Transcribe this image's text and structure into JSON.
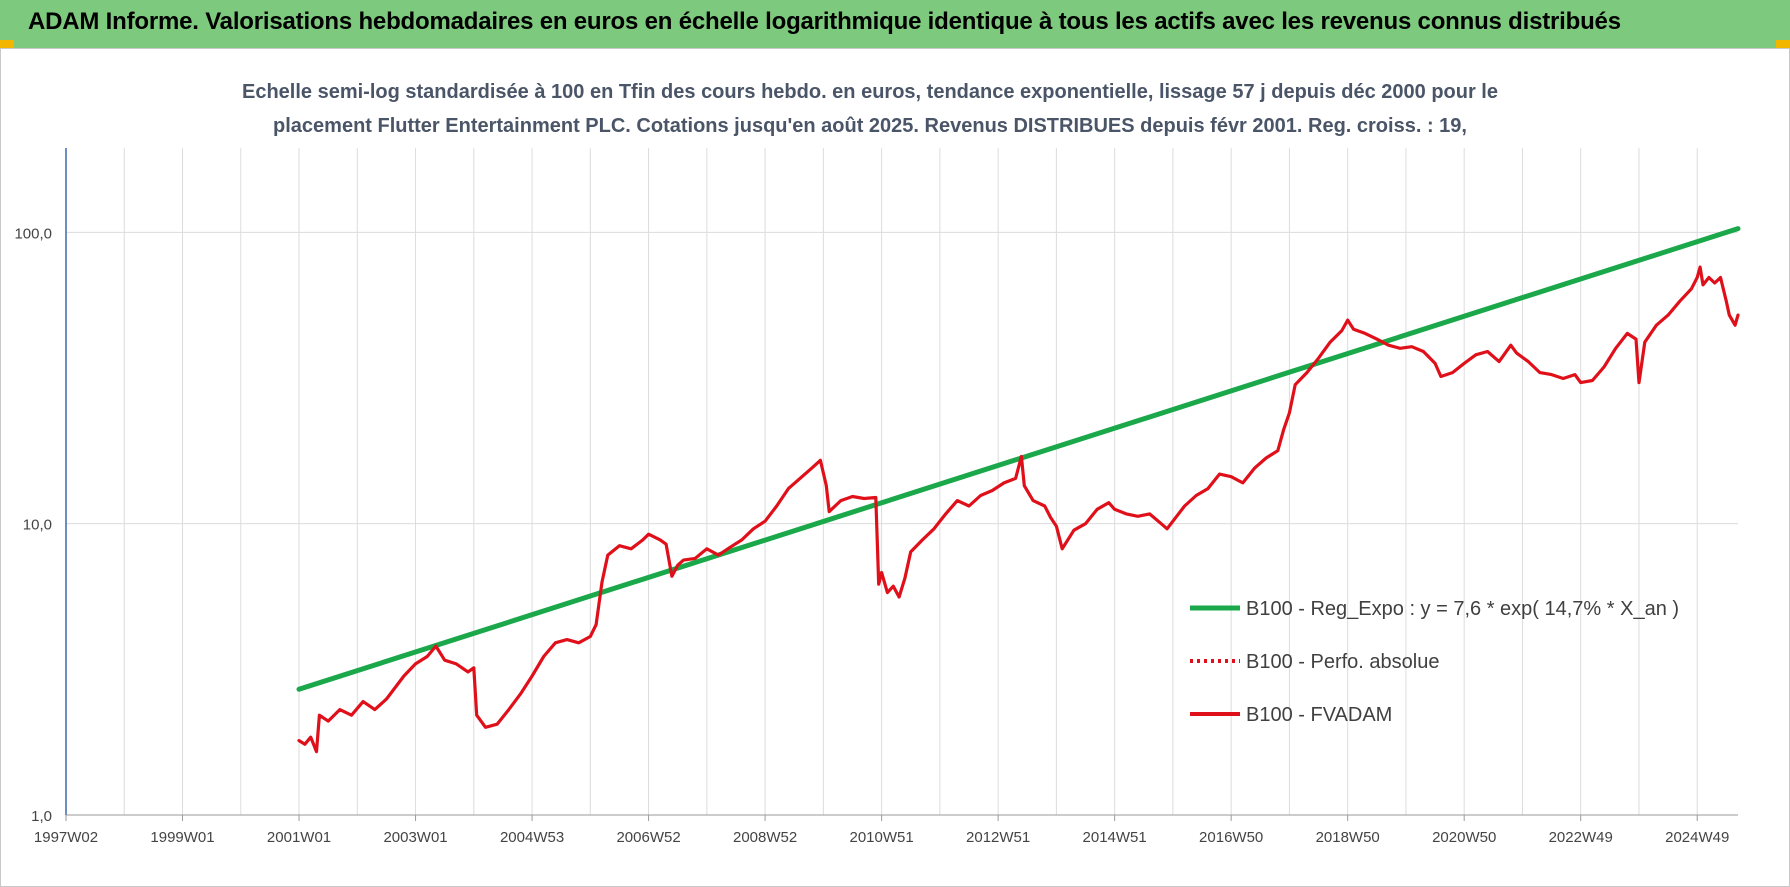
{
  "header": {
    "title": "ADAM Informe. Valorisations hebdomadaires en euros en échelle logarithmique identique à tous les actifs avec les revenus connus distribués"
  },
  "colors": {
    "header_bg": "#7dc97d",
    "regression": "#1aa84a",
    "fvadam": "#e0101a",
    "perfo": "#e0101a",
    "grid": "#dcdcdc",
    "axis": "#3a6ab0"
  },
  "chart_data": {
    "type": "line",
    "title_lines": [
      "Echelle semi-log standardisée à 100 en Tfin des cours hebdo. en euros, tendance exponentielle, lissage 57 j depuis déc 2000 pour le",
      "placement Flutter Entertainment PLC. Cotations jusqu'en août 2025. Revenus DISTRIBUES depuis févr 2001. Reg. croiss. : 19,"
    ],
    "y_scale": "log",
    "ylim": [
      1,
      180
    ],
    "y_ticks": [
      {
        "value": 1,
        "label": "1,0"
      },
      {
        "value": 10,
        "label": "10,0"
      },
      {
        "value": 100,
        "label": "100,0"
      }
    ],
    "x_range": [
      1997.0,
      2025.7
    ],
    "x_ticks": [
      {
        "x": 1997.0,
        "label": "1997W02"
      },
      {
        "x": 1999.0,
        "label": "1999W01"
      },
      {
        "x": 2001.0,
        "label": "2001W01"
      },
      {
        "x": 2003.0,
        "label": "2003W01"
      },
      {
        "x": 2005.0,
        "label": "2004W53"
      },
      {
        "x": 2007.0,
        "label": "2006W52"
      },
      {
        "x": 2009.0,
        "label": "2008W52"
      },
      {
        "x": 2011.0,
        "label": "2010W51"
      },
      {
        "x": 2013.0,
        "label": "2012W51"
      },
      {
        "x": 2015.0,
        "label": "2014W51"
      },
      {
        "x": 2017.0,
        "label": "2016W50"
      },
      {
        "x": 2019.0,
        "label": "2018W50"
      },
      {
        "x": 2021.0,
        "label": "2020W50"
      },
      {
        "x": 2023.0,
        "label": "2022W49"
      },
      {
        "x": 2025.0,
        "label": "2024W49"
      }
    ],
    "grid": true,
    "legend_position": "bottom-right",
    "series": [
      {
        "name": "B100 - Reg_Expo : y = 7,6 * exp( 14,7% *  X_an )",
        "style": "solid-thick",
        "color": "#1aa84a",
        "points": [
          [
            2001.0,
            2.7
          ],
          [
            2025.7,
            103
          ]
        ]
      },
      {
        "name": "B100 - Perfo. absolue",
        "style": "dotted",
        "color": "#e0101a",
        "points": []
      },
      {
        "name": "B100 - FVADAM",
        "style": "solid",
        "color": "#e0101a",
        "points": [
          [
            2001.0,
            1.8
          ],
          [
            2001.1,
            1.75
          ],
          [
            2001.2,
            1.85
          ],
          [
            2001.3,
            1.65
          ],
          [
            2001.35,
            2.2
          ],
          [
            2001.5,
            2.1
          ],
          [
            2001.7,
            2.3
          ],
          [
            2001.9,
            2.2
          ],
          [
            2002.1,
            2.45
          ],
          [
            2002.3,
            2.3
          ],
          [
            2002.5,
            2.5
          ],
          [
            2002.8,
            3.0
          ],
          [
            2003.0,
            3.3
          ],
          [
            2003.2,
            3.5
          ],
          [
            2003.35,
            3.8
          ],
          [
            2003.5,
            3.4
          ],
          [
            2003.7,
            3.3
          ],
          [
            2003.9,
            3.1
          ],
          [
            2004.0,
            3.2
          ],
          [
            2004.05,
            2.2
          ],
          [
            2004.2,
            2.0
          ],
          [
            2004.4,
            2.05
          ],
          [
            2004.6,
            2.3
          ],
          [
            2004.8,
            2.6
          ],
          [
            2005.0,
            3.0
          ],
          [
            2005.2,
            3.5
          ],
          [
            2005.4,
            3.9
          ],
          [
            2005.6,
            4.0
          ],
          [
            2005.8,
            3.9
          ],
          [
            2006.0,
            4.1
          ],
          [
            2006.1,
            4.5
          ],
          [
            2006.2,
            6.3
          ],
          [
            2006.3,
            7.8
          ],
          [
            2006.5,
            8.4
          ],
          [
            2006.7,
            8.2
          ],
          [
            2006.9,
            8.8
          ],
          [
            2007.0,
            9.2
          ],
          [
            2007.2,
            8.8
          ],
          [
            2007.3,
            8.5
          ],
          [
            2007.4,
            6.6
          ],
          [
            2007.5,
            7.2
          ],
          [
            2007.6,
            7.5
          ],
          [
            2007.8,
            7.6
          ],
          [
            2008.0,
            8.2
          ],
          [
            2008.2,
            7.8
          ],
          [
            2008.4,
            8.3
          ],
          [
            2008.6,
            8.8
          ],
          [
            2008.8,
            9.6
          ],
          [
            2009.0,
            10.2
          ],
          [
            2009.2,
            11.5
          ],
          [
            2009.4,
            13.2
          ],
          [
            2009.6,
            14.3
          ],
          [
            2009.8,
            15.5
          ],
          [
            2009.95,
            16.5
          ],
          [
            2010.05,
            13.5
          ],
          [
            2010.1,
            11.0
          ],
          [
            2010.3,
            12.0
          ],
          [
            2010.5,
            12.4
          ],
          [
            2010.7,
            12.2
          ],
          [
            2010.9,
            12.3
          ],
          [
            2010.95,
            6.2
          ],
          [
            2011.0,
            6.8
          ],
          [
            2011.1,
            5.8
          ],
          [
            2011.2,
            6.1
          ],
          [
            2011.3,
            5.6
          ],
          [
            2011.4,
            6.5
          ],
          [
            2011.5,
            8.0
          ],
          [
            2011.7,
            8.8
          ],
          [
            2011.9,
            9.6
          ],
          [
            2012.1,
            10.8
          ],
          [
            2012.3,
            12.0
          ],
          [
            2012.5,
            11.5
          ],
          [
            2012.7,
            12.5
          ],
          [
            2012.9,
            13.0
          ],
          [
            2013.1,
            13.8
          ],
          [
            2013.3,
            14.3
          ],
          [
            2013.4,
            17.0
          ],
          [
            2013.45,
            13.5
          ],
          [
            2013.6,
            12.0
          ],
          [
            2013.8,
            11.5
          ],
          [
            2013.9,
            10.5
          ],
          [
            2014.0,
            9.8
          ],
          [
            2014.1,
            8.2
          ],
          [
            2014.3,
            9.5
          ],
          [
            2014.5,
            10.0
          ],
          [
            2014.7,
            11.2
          ],
          [
            2014.9,
            11.8
          ],
          [
            2015.0,
            11.2
          ],
          [
            2015.2,
            10.8
          ],
          [
            2015.4,
            10.6
          ],
          [
            2015.6,
            10.8
          ],
          [
            2015.8,
            10.0
          ],
          [
            2015.9,
            9.6
          ],
          [
            2016.0,
            10.2
          ],
          [
            2016.2,
            11.5
          ],
          [
            2016.4,
            12.5
          ],
          [
            2016.6,
            13.2
          ],
          [
            2016.8,
            14.8
          ],
          [
            2017.0,
            14.5
          ],
          [
            2017.2,
            13.8
          ],
          [
            2017.4,
            15.5
          ],
          [
            2017.6,
            16.8
          ],
          [
            2017.8,
            17.8
          ],
          [
            2017.9,
            21.0
          ],
          [
            2018.0,
            24.0
          ],
          [
            2018.1,
            30.0
          ],
          [
            2018.3,
            33.0
          ],
          [
            2018.5,
            37.0
          ],
          [
            2018.7,
            42.0
          ],
          [
            2018.9,
            46.0
          ],
          [
            2019.0,
            50.0
          ],
          [
            2019.1,
            46.5
          ],
          [
            2019.3,
            45.0
          ],
          [
            2019.5,
            43.0
          ],
          [
            2019.7,
            41.0
          ],
          [
            2019.9,
            40.0
          ],
          [
            2020.1,
            40.5
          ],
          [
            2020.3,
            39.0
          ],
          [
            2020.5,
            35.5
          ],
          [
            2020.6,
            32.0
          ],
          [
            2020.8,
            33.0
          ],
          [
            2021.0,
            35.5
          ],
          [
            2021.2,
            38.0
          ],
          [
            2021.4,
            39.0
          ],
          [
            2021.6,
            36.0
          ],
          [
            2021.8,
            41.0
          ],
          [
            2021.9,
            38.5
          ],
          [
            2022.1,
            36.0
          ],
          [
            2022.3,
            33.0
          ],
          [
            2022.5,
            32.5
          ],
          [
            2022.7,
            31.5
          ],
          [
            2022.9,
            32.5
          ],
          [
            2023.0,
            30.5
          ],
          [
            2023.2,
            31.0
          ],
          [
            2023.4,
            34.5
          ],
          [
            2023.6,
            40.0
          ],
          [
            2023.8,
            45.0
          ],
          [
            2023.95,
            43.0
          ],
          [
            2024.0,
            30.5
          ],
          [
            2024.1,
            42.0
          ],
          [
            2024.3,
            48.0
          ],
          [
            2024.5,
            52.0
          ],
          [
            2024.7,
            58.0
          ],
          [
            2024.9,
            64.0
          ],
          [
            2025.0,
            70.0
          ],
          [
            2025.05,
            76.0
          ],
          [
            2025.1,
            66.0
          ],
          [
            2025.2,
            70.0
          ],
          [
            2025.3,
            67.0
          ],
          [
            2025.4,
            70.0
          ],
          [
            2025.5,
            58.0
          ],
          [
            2025.55,
            52.0
          ],
          [
            2025.65,
            48.0
          ],
          [
            2025.7,
            52.0
          ]
        ]
      }
    ]
  }
}
